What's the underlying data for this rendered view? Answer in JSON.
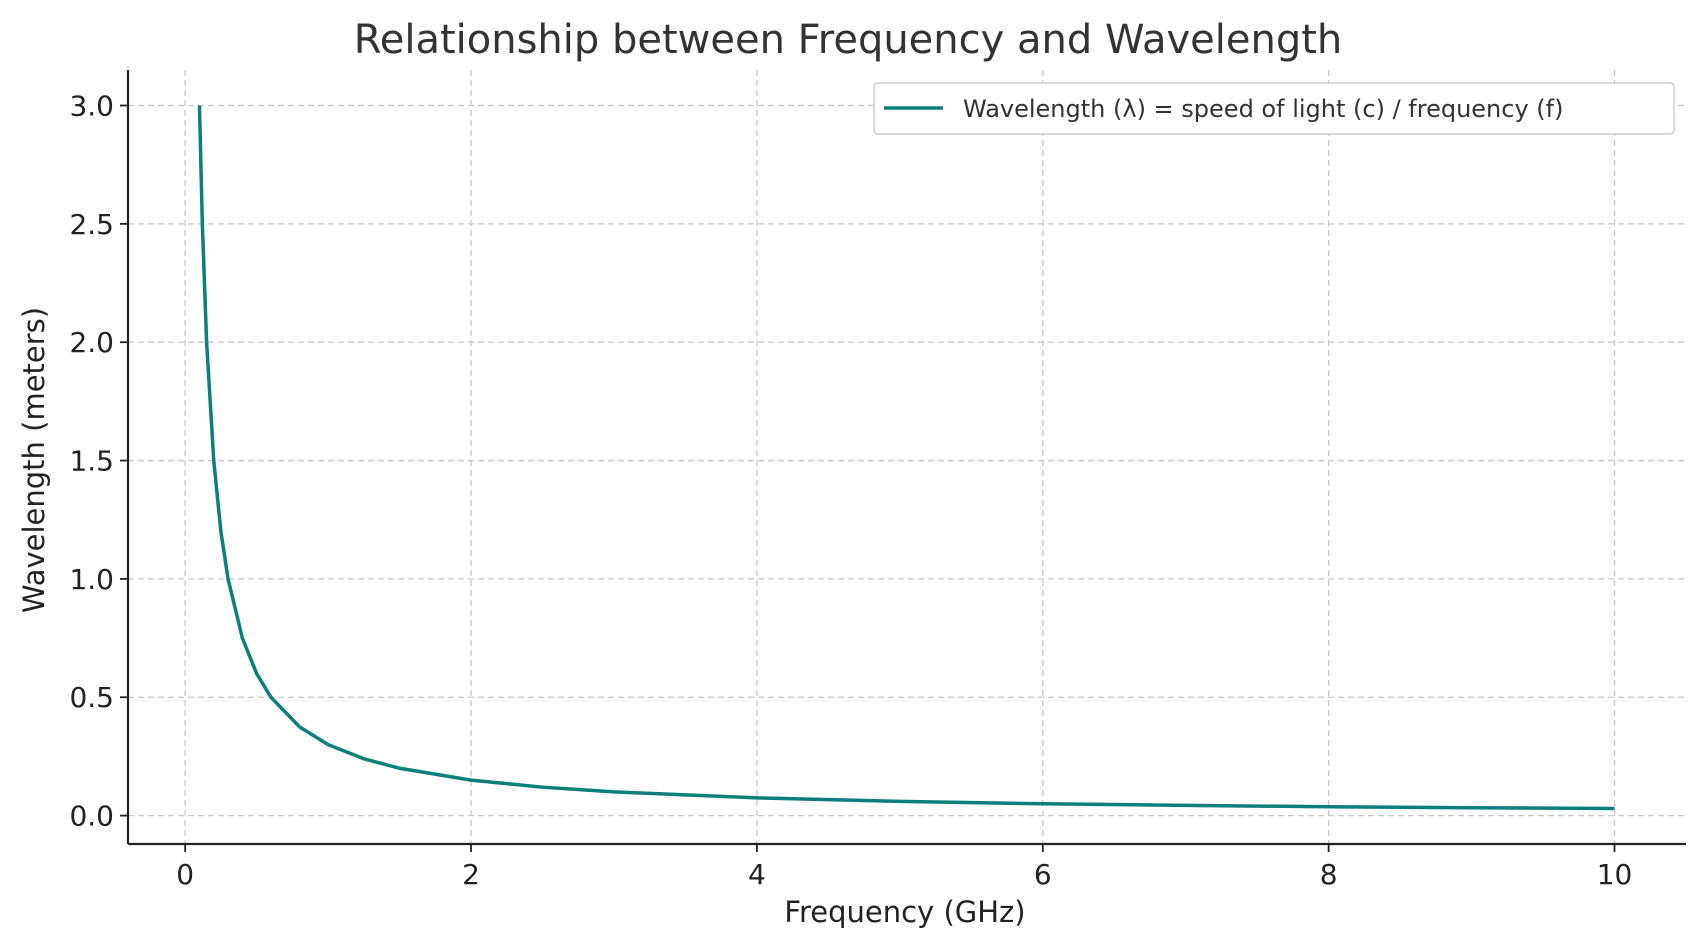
{
  "chart_data": {
    "type": "line",
    "title": "Relationship between Frequency and Wavelength",
    "xlabel": "Frequency (GHz)",
    "ylabel": "Wavelength (meters)",
    "xlim": [
      -0.4,
      10.5
    ],
    "ylim": [
      -0.12,
      3.15
    ],
    "x_ticks": [
      0,
      2,
      4,
      6,
      8,
      10
    ],
    "x_tick_labels": [
      "0",
      "2",
      "4",
      "6",
      "8",
      "10"
    ],
    "y_ticks": [
      0.0,
      0.5,
      1.0,
      1.5,
      2.0,
      2.5,
      3.0
    ],
    "y_tick_labels": [
      "0.0",
      "0.5",
      "1.0",
      "1.5",
      "2.0",
      "2.5",
      "3.0"
    ],
    "grid": true,
    "legend_position": "top-right",
    "series": [
      {
        "name": "Wavelength (λ) = speed of light (c) / frequency (f)",
        "color": "#0b7f7a",
        "x": [
          0.1,
          0.12,
          0.15,
          0.2,
          0.25,
          0.3,
          0.4,
          0.5,
          0.6,
          0.8,
          1.0,
          1.25,
          1.5,
          2.0,
          2.5,
          3.0,
          4.0,
          5.0,
          6.0,
          7.0,
          8.0,
          9.0,
          10.0
        ],
        "y": [
          3.0,
          2.5,
          2.0,
          1.5,
          1.2,
          1.0,
          0.75,
          0.6,
          0.5,
          0.375,
          0.3,
          0.24,
          0.2,
          0.15,
          0.12,
          0.1,
          0.075,
          0.06,
          0.05,
          0.043,
          0.0375,
          0.033,
          0.03
        ]
      }
    ]
  }
}
